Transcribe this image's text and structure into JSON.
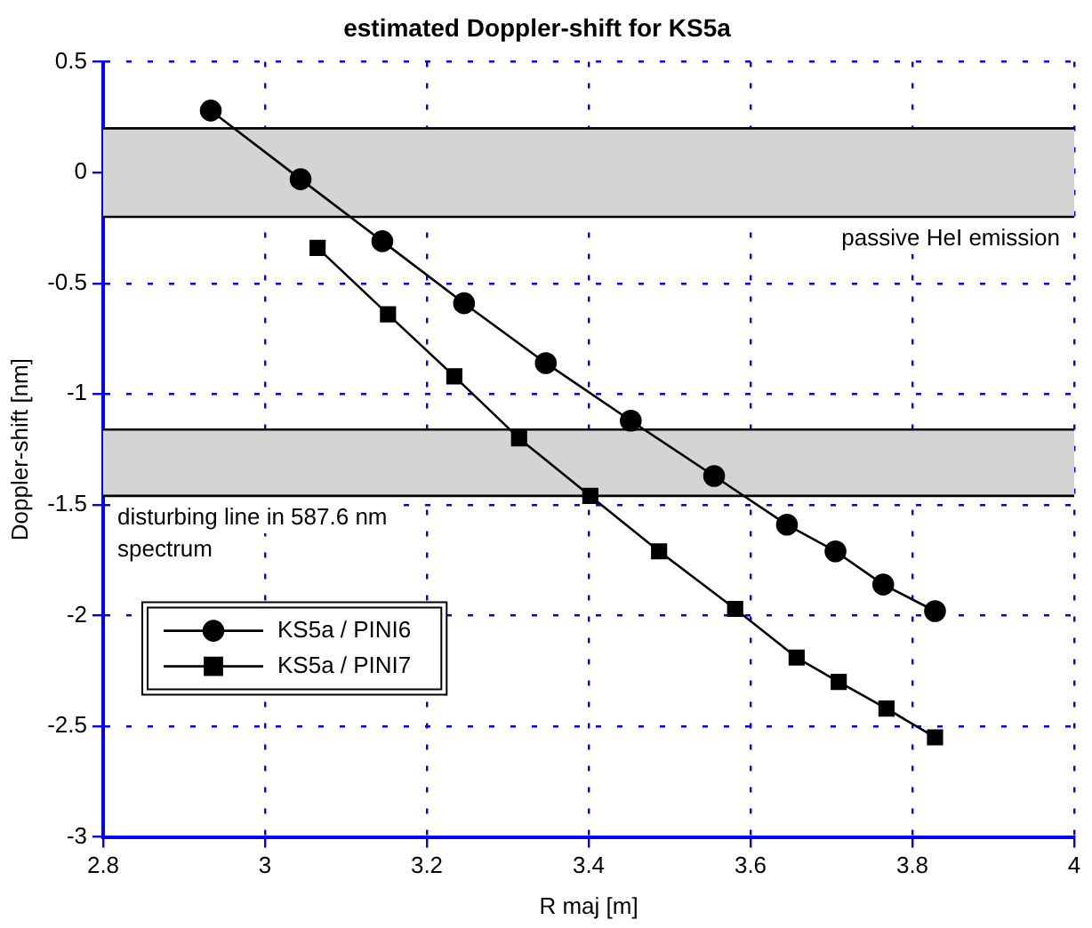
{
  "chart_data": {
    "type": "line",
    "title": "estimated Doppler-shift for KS5a",
    "xlabel": "R maj [m]",
    "ylabel": "Doppler-shift [nm]",
    "xlim": [
      2.8,
      4
    ],
    "xticks": [
      2.8,
      3,
      3.2,
      3.4,
      3.6,
      3.8,
      4
    ],
    "ylim": [
      -3,
      0.5
    ],
    "yticks": [
      -3,
      -2.5,
      -2,
      -1.5,
      -1,
      -0.5,
      0,
      0.5
    ],
    "grid": true,
    "legend": "bottom left",
    "line_style": "solid",
    "series": [
      {
        "name": "KS5a / PINI6",
        "color": "#000000",
        "marker": "circle",
        "x": [
          2.933,
          3.044,
          3.145,
          3.246,
          3.347,
          3.452,
          3.555,
          3.645,
          3.705,
          3.764,
          3.828
        ],
        "values": [
          0.28,
          -0.03,
          -0.31,
          -0.59,
          -0.86,
          -1.12,
          -1.37,
          -1.59,
          -1.71,
          -1.86,
          -1.98
        ]
      },
      {
        "name": "KS5a / PINI7",
        "color": "#000000",
        "marker": "square",
        "x": [
          3.065,
          3.152,
          3.234,
          3.314,
          3.402,
          3.487,
          3.581,
          3.657,
          3.709,
          3.768,
          3.828
        ],
        "values": [
          -0.34,
          -0.64,
          -0.92,
          -1.2,
          -1.46,
          -1.71,
          -1.97,
          -2.19,
          -2.3,
          -2.42,
          -2.55
        ]
      }
    ],
    "bands": [
      {
        "axis": "y",
        "from": 0.2,
        "to": -0.2,
        "label": "passive HeI emission",
        "color": "#d4d4d4"
      },
      {
        "axis": "y",
        "from": -1.16,
        "to": -1.46,
        "label": "disturbing line in 587.6 nm spectrum",
        "color": "#d4d4d4"
      }
    ]
  }
}
